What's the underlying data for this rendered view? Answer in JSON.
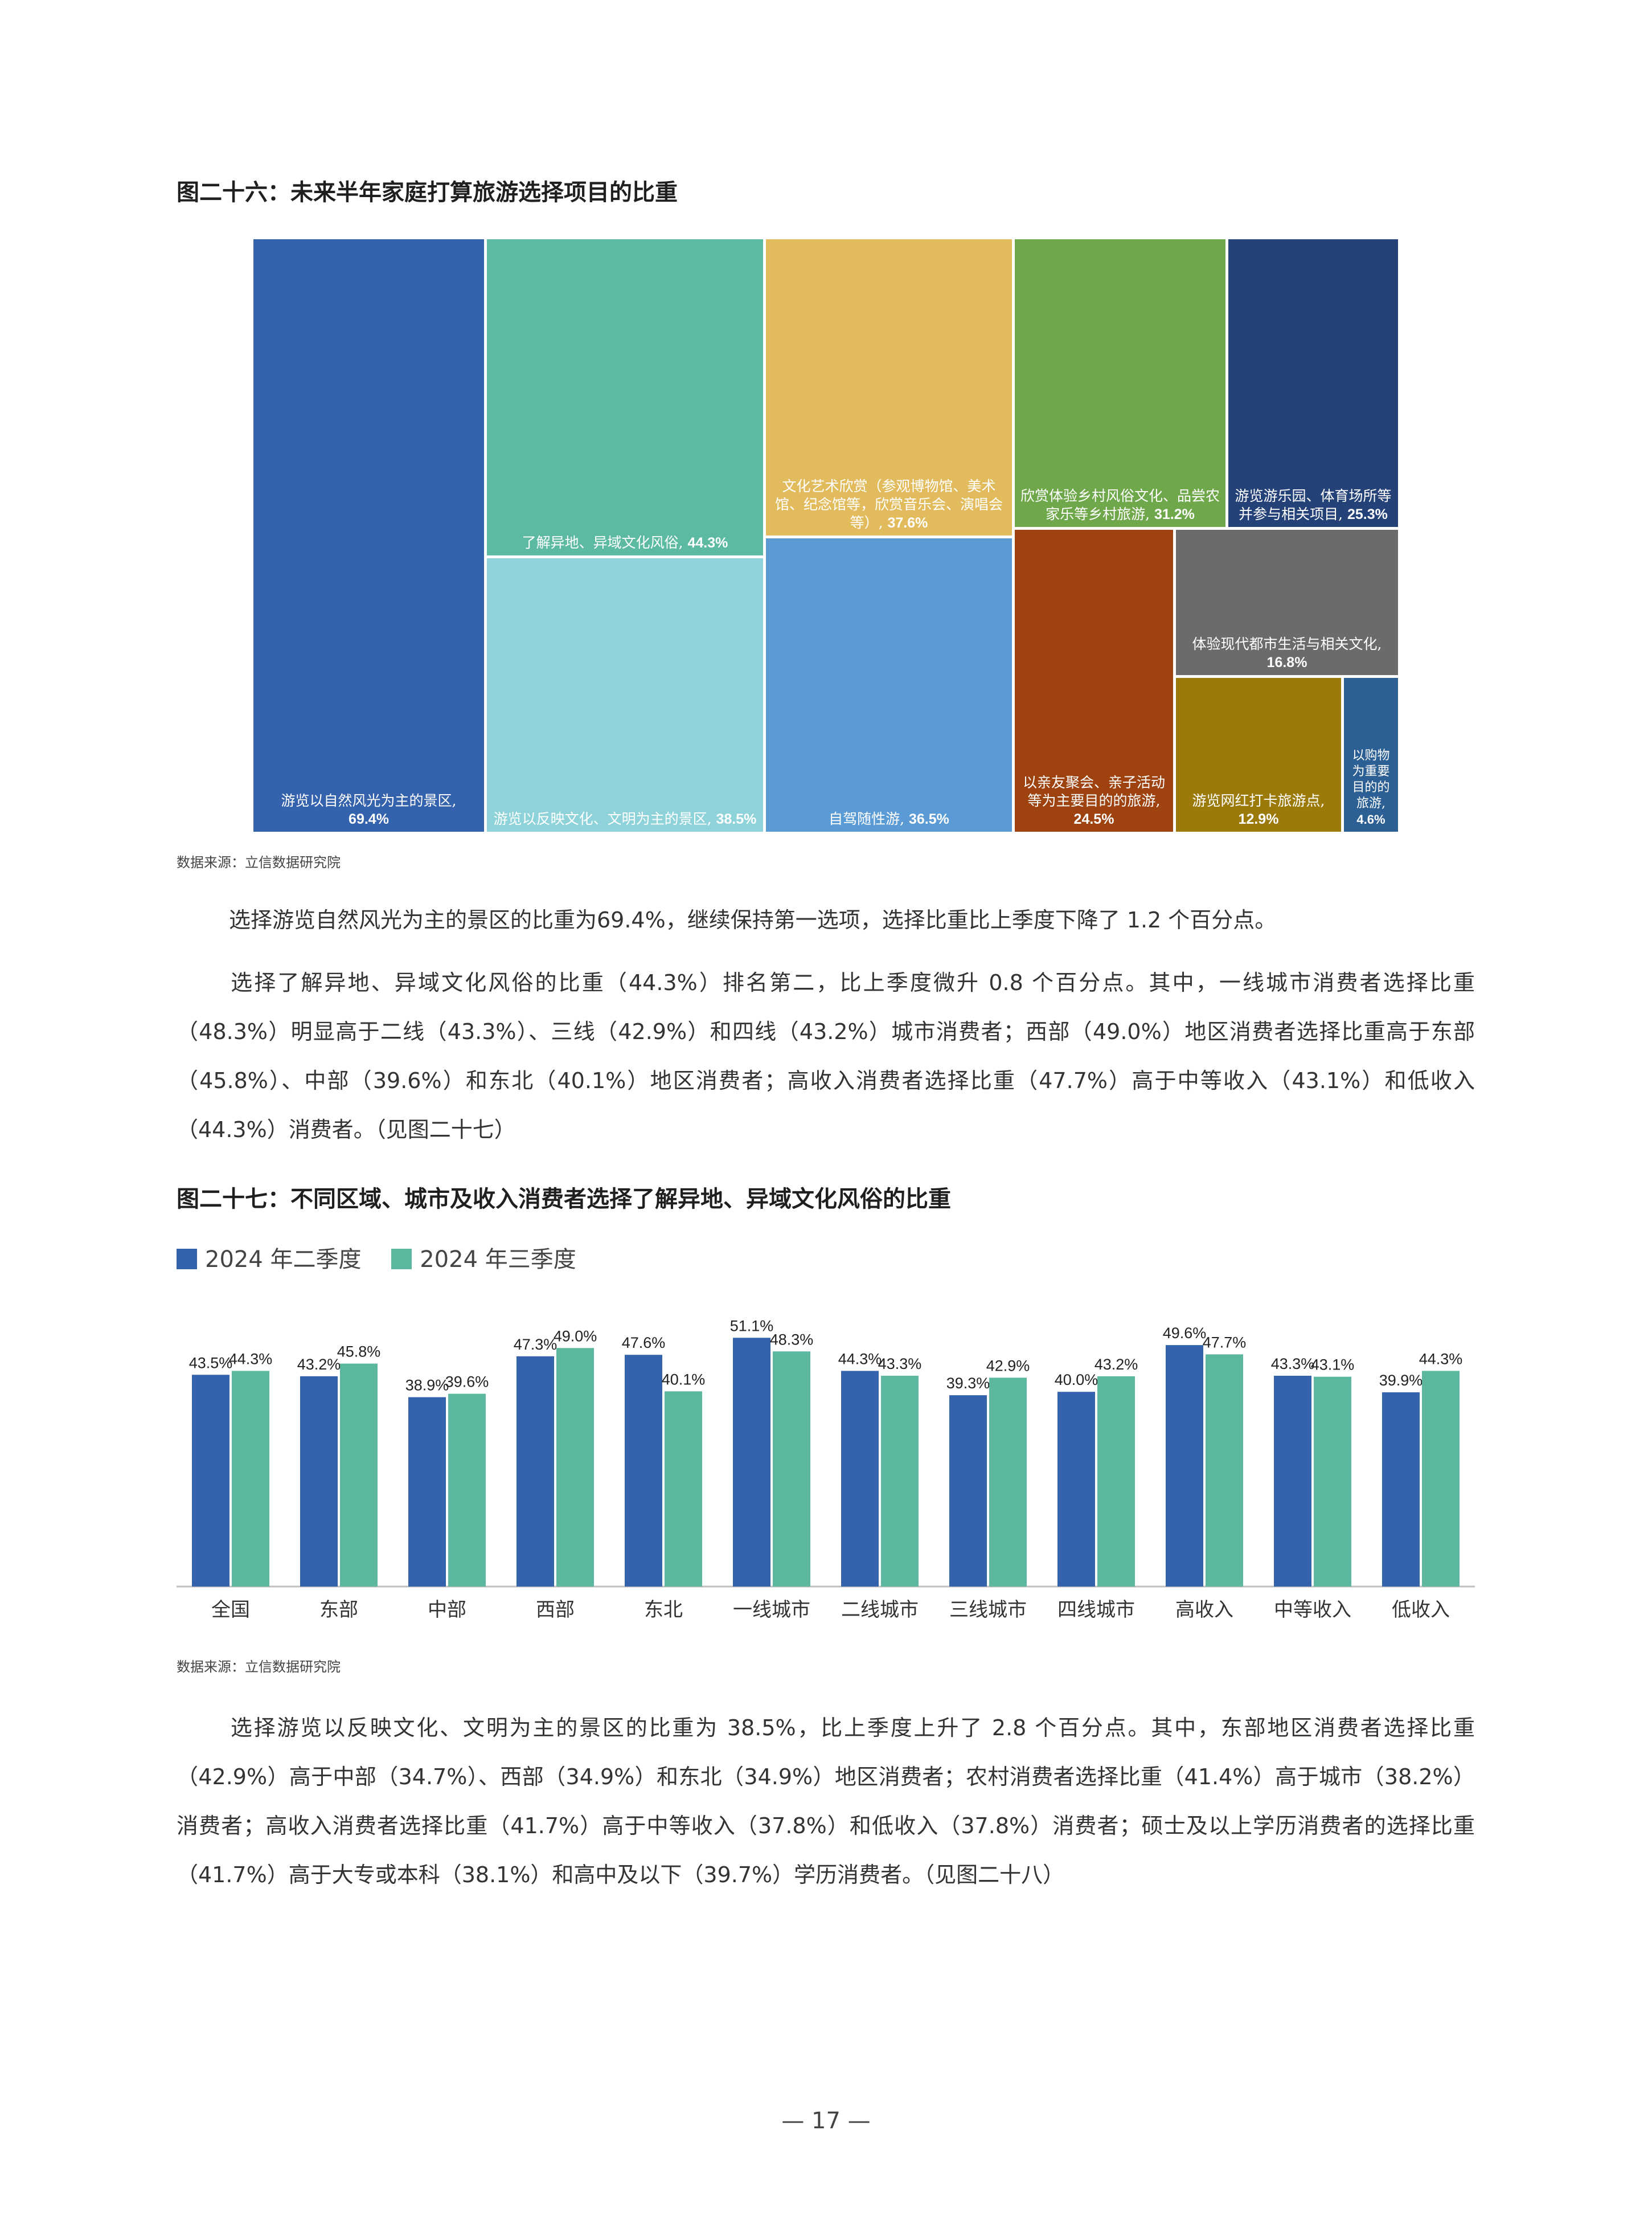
{
  "figure26": {
    "title": "图二十六：未来半年家庭打算旅游选择项目的比重",
    "source": "数据来源：立信数据研究院"
  },
  "figure27": {
    "title": "图二十七：不同区域、城市及收入消费者选择了解异地、异域文化风俗的比重",
    "source": "数据来源：立信数据研究院"
  },
  "paragraphs": {
    "p1": "选择游览自然风光为主的景区的比重为69.4%，继续保持第一选项，选择比重比上季度下降了 1.2 个百分点。",
    "p2": "选择了解异地、异域文化风俗的比重（44.3%）排名第二，比上季度微升 0.8 个百分点。其中，一线城市消费者选择比重（48.3%）明显高于二线（43.3%）、三线（42.9%）和四线（43.2%）城市消费者；西部（49.0%）地区消费者选择比重高于东部（45.8%）、中部（39.6%）和东北（40.1%）地区消费者；高收入消费者选择比重（47.7%）高于中等收入（43.1%）和低收入（44.3%）消费者。（见图二十七）",
    "p3": "选择游览以反映文化、文明为主的景区的比重为 38.5%，比上季度上升了 2.8 个百分点。其中，东部地区消费者选择比重（42.9%）高于中部（34.7%）、西部（34.9%）和东北（34.9%）地区消费者；农村消费者选择比重（41.4%）高于城市（38.2%）消费者；高收入消费者选择比重（41.7%）高于中等收入（37.8%）和低收入（37.8%）消费者；硕士及以上学历消费者的选择比重（41.7%）高于大专或本科（38.1%）和高中及以下（39.7%）学历消费者。（见图二十八）"
  },
  "page_number": "— 17 —",
  "chart_data": [
    {
      "type": "treemap",
      "title": "图二十六：未来半年家庭打算旅游选择项目的比重",
      "items": [
        {
          "label": "游览以自然风光为主的景区,",
          "value": 69.4,
          "value_label": "69.4%",
          "color": "#3462ad"
        },
        {
          "label": "了解异地、异域文化风俗,",
          "value": 44.3,
          "value_label": "44.3%",
          "color": "#5bbaa1"
        },
        {
          "label": "游览以反映文化、文明为主的景区,",
          "value": 38.5,
          "value_label": "38.5%",
          "color": "#8fd3da"
        },
        {
          "label": "文化艺术欣赏（参观博物馆、美术馆、纪念馆等，欣赏音乐会、演唱会等）,",
          "value": 37.6,
          "value_label": "37.6%",
          "color": "#e2bb5d"
        },
        {
          "label": "自驾随性游,",
          "value": 36.5,
          "value_label": "36.5%",
          "color": "#5b9bd5"
        },
        {
          "label": "欣赏体验乡村风俗文化、品尝农家乐等乡村旅游,",
          "value": 31.2,
          "value_label": "31.2%",
          "color": "#6fa84a"
        },
        {
          "label": "游览游乐园、体育场所等并参与相关项目,",
          "value": 25.3,
          "value_label": "25.3%",
          "color": "#254278"
        },
        {
          "label": "以亲友聚会、亲子活动等为主要目的的旅游,",
          "value": 24.5,
          "value_label": "24.5%",
          "color": "#9e4210"
        },
        {
          "label": "体验现代都市生活与相关文化,",
          "value": 16.8,
          "value_label": "16.8%",
          "color": "#6b6b6b"
        },
        {
          "label": "游览网红打卡旅游点,",
          "value": 12.9,
          "value_label": "12.9%",
          "color": "#9c7a0a"
        },
        {
          "label": "以购物为重要目的的旅游,",
          "value": 4.6,
          "value_label": "4.6%",
          "color": "#2c5f94"
        }
      ]
    },
    {
      "type": "bar",
      "title": "图二十七：不同区域、城市及收入消费者选择了解异地、异域文化风俗的比重",
      "categories": [
        "全国",
        "东部",
        "中部",
        "西部",
        "东北",
        "一线城市",
        "二线城市",
        "三线城市",
        "四线城市",
        "高收入",
        "中等收入",
        "低收入"
      ],
      "series": [
        {
          "name": "2024 年二季度",
          "color": "#3462ad",
          "values": [
            43.5,
            43.2,
            38.9,
            47.3,
            47.6,
            51.1,
            44.3,
            39.3,
            40.0,
            49.6,
            43.3,
            39.9
          ],
          "labels": [
            "43.5%",
            "43.2%",
            "38.9%",
            "47.3%",
            "47.6%",
            "51.1%",
            "44.3%",
            "39.3%",
            "40.0%",
            "49.6%",
            "43.3%",
            "39.9%"
          ]
        },
        {
          "name": "2024 年三季度",
          "color": "#5bb89e",
          "values": [
            44.3,
            45.8,
            39.6,
            49.0,
            40.1,
            48.3,
            43.3,
            42.9,
            43.2,
            47.7,
            43.1,
            44.3
          ],
          "labels": [
            "44.3%",
            "45.8%",
            "39.6%",
            "49.0%",
            "40.1%",
            "48.3%",
            "43.3%",
            "42.9%",
            "43.2%",
            "47.7%",
            "43.1%",
            "44.3%"
          ]
        }
      ],
      "ylim": [
        0,
        55
      ],
      "legend": "top-left",
      "grid": false
    }
  ]
}
